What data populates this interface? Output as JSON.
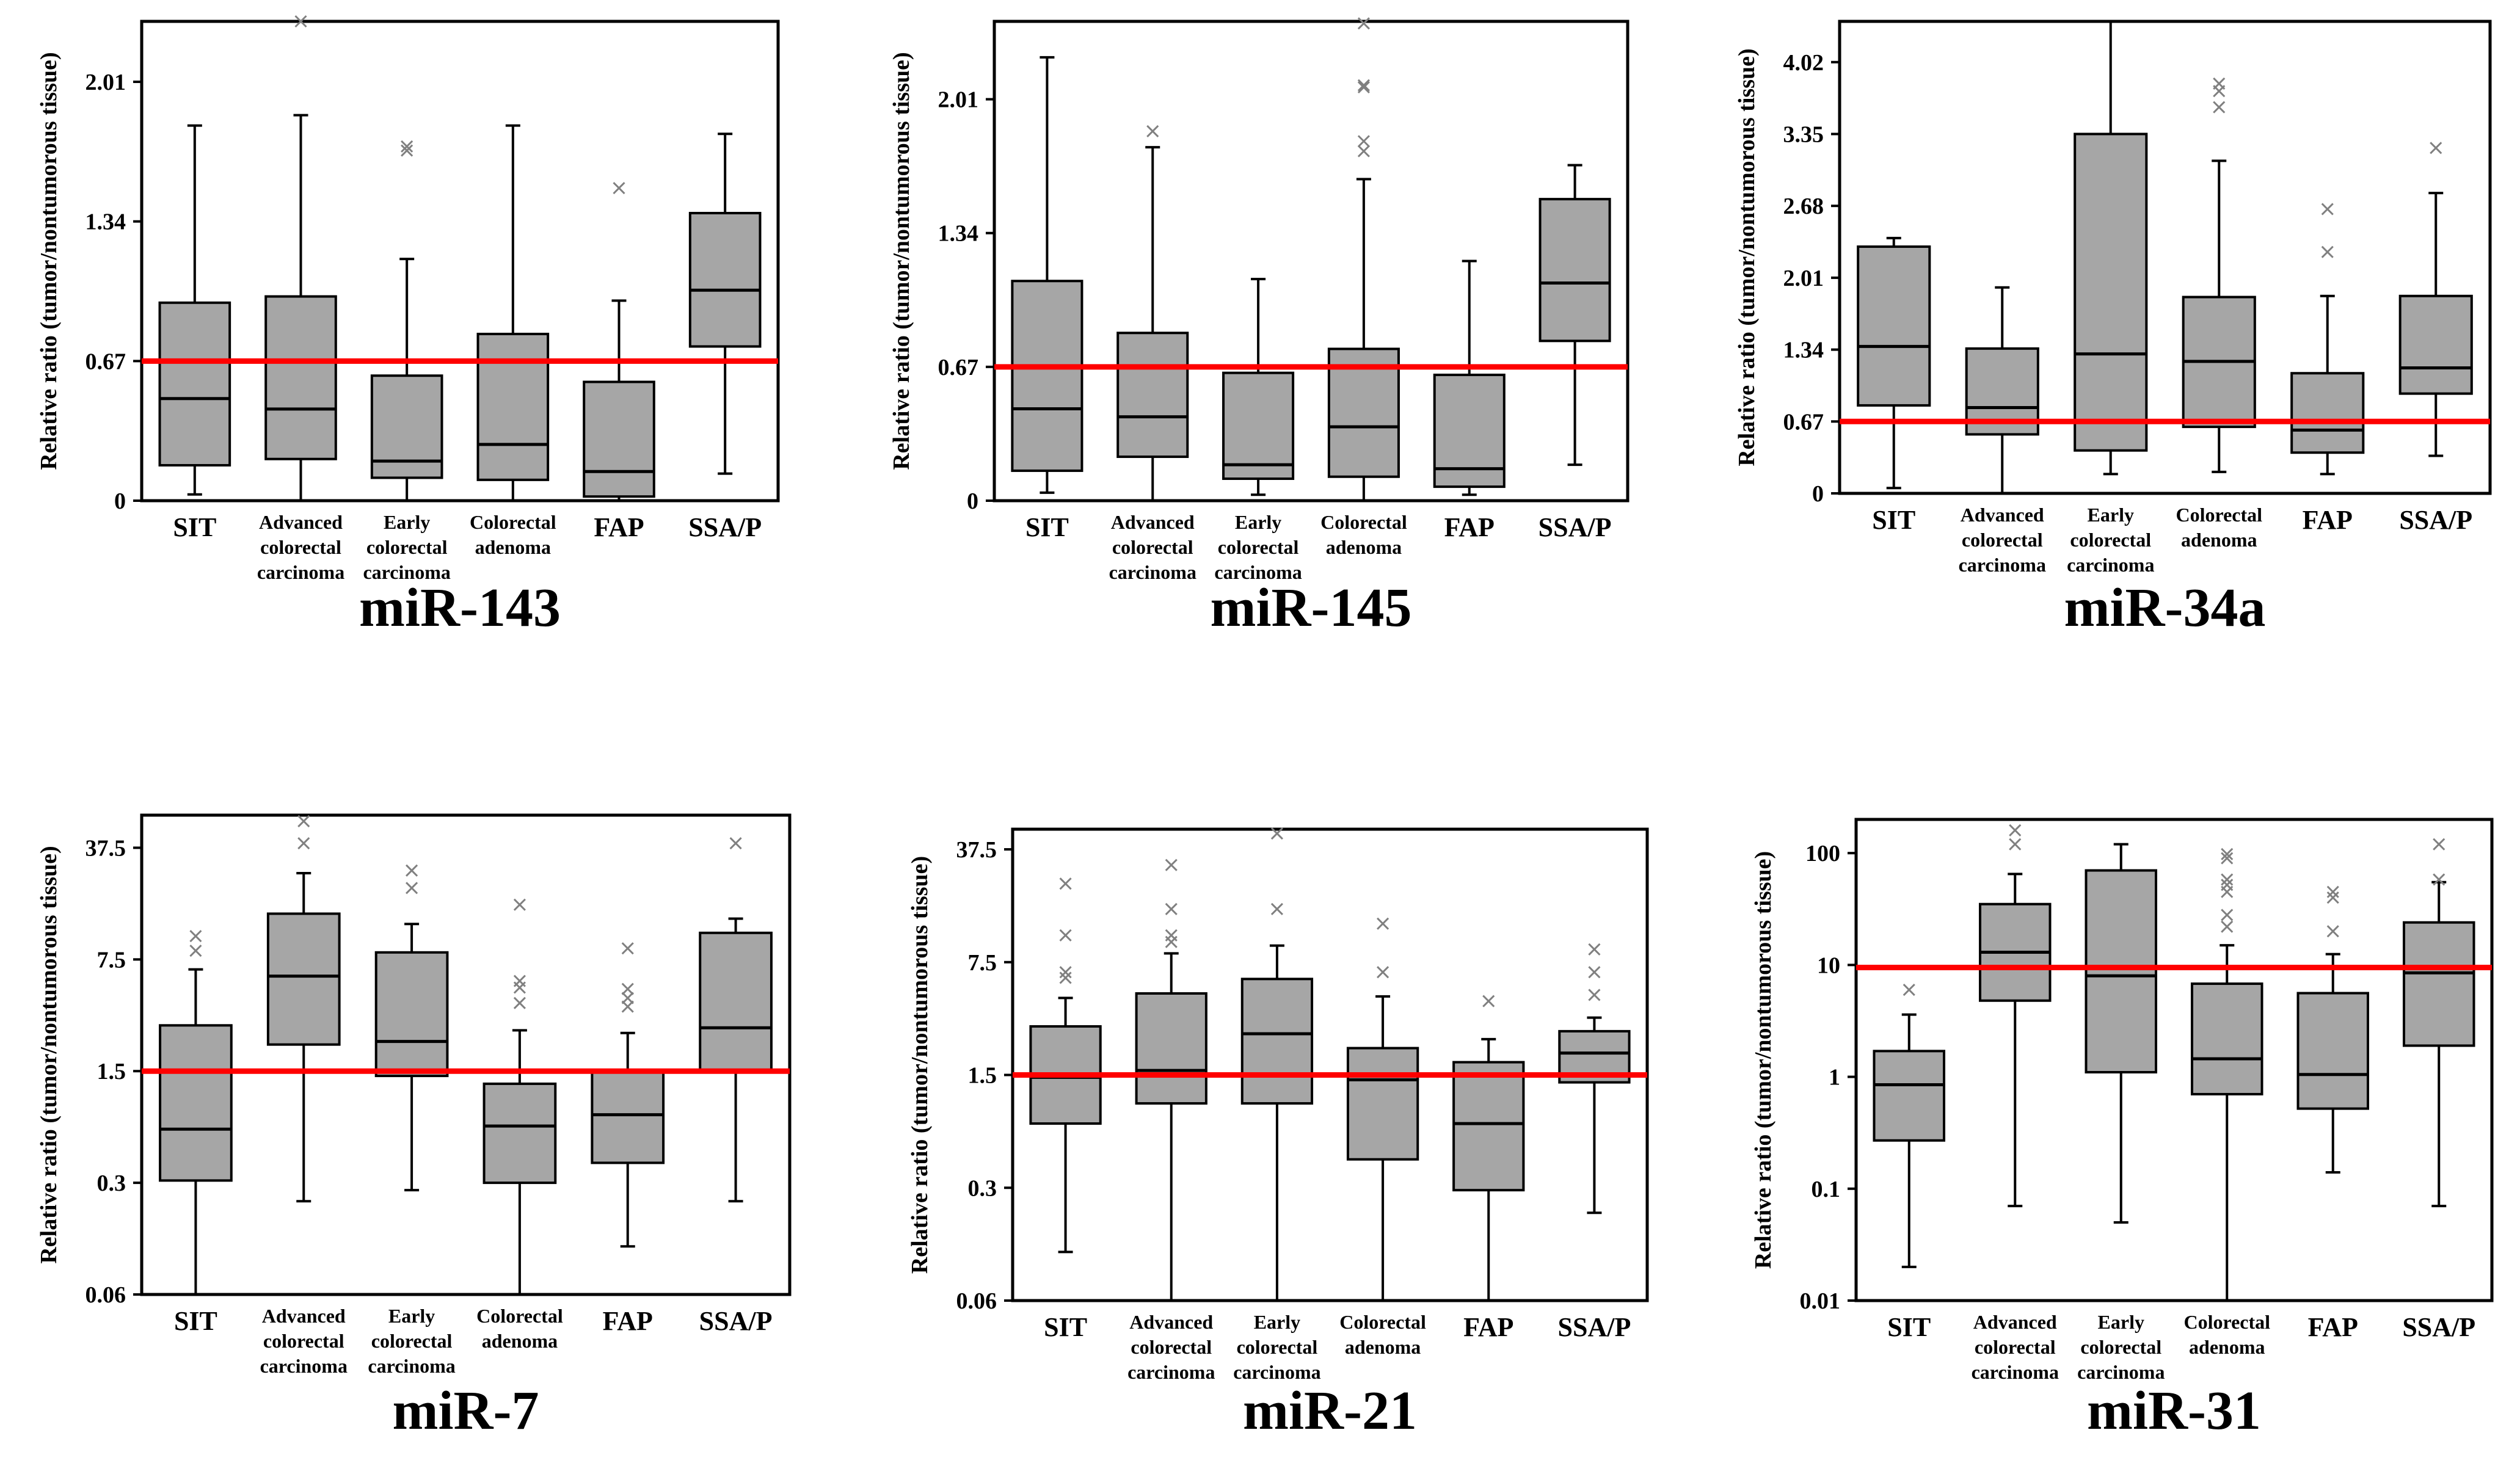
{
  "figure": {
    "ylabel": "Relative ratio (tumor/nontumorous tissue)",
    "categories": [
      [
        "SIT"
      ],
      [
        "Advanced",
        "colorectal",
        "carcinoma"
      ],
      [
        "Early",
        "colorectal",
        "carcinoma"
      ],
      [
        "Colorectal",
        "adenoma"
      ],
      [
        "FAP"
      ],
      [
        "SSA/P"
      ]
    ],
    "colors": {
      "box_fill": "#a6a6a6",
      "box_stroke": "#000000",
      "ref_line": "#ff0000",
      "outlier": "#808080"
    }
  },
  "chart_data": [
    {
      "type": "box",
      "title": "miR-143",
      "scale": "linear",
      "ylim": [
        0,
        2.3
      ],
      "yticks": [
        "0",
        "0.67",
        "1.34",
        "2.01"
      ],
      "reference_line": 0.67,
      "boxes": [
        {
          "whisker_low": 0.03,
          "q1": 0.17,
          "median": 0.49,
          "q3": 0.95,
          "whisker_high": 1.8,
          "outliers": []
        },
        {
          "whisker_low": 0.0,
          "q1": 0.2,
          "median": 0.44,
          "q3": 0.98,
          "whisker_high": 1.85,
          "outliers": [
            2.3
          ]
        },
        {
          "whisker_low": 0.0,
          "q1": 0.11,
          "median": 0.19,
          "q3": 0.6,
          "whisker_high": 1.16,
          "outliers": [
            1.7,
            1.68
          ]
        },
        {
          "whisker_low": 0.0,
          "q1": 0.1,
          "median": 0.27,
          "q3": 0.8,
          "whisker_high": 1.8,
          "outliers": []
        },
        {
          "whisker_low": 0.0,
          "q1": 0.02,
          "median": 0.14,
          "q3": 0.57,
          "whisker_high": 0.96,
          "outliers": [
            1.5
          ]
        },
        {
          "whisker_low": 0.13,
          "q1": 0.74,
          "median": 1.01,
          "q3": 1.38,
          "whisker_high": 1.76,
          "outliers": []
        }
      ]
    },
    {
      "type": "box",
      "title": "miR-145",
      "scale": "linear",
      "ylim": [
        0,
        2.4
      ],
      "yticks": [
        "0",
        "0.67",
        "1.34",
        "2.01"
      ],
      "reference_line": 0.67,
      "boxes": [
        {
          "whisker_low": 0.04,
          "q1": 0.15,
          "median": 0.46,
          "q3": 1.1,
          "whisker_high": 2.22,
          "outliers": []
        },
        {
          "whisker_low": 0.0,
          "q1": 0.22,
          "median": 0.42,
          "q3": 0.84,
          "whisker_high": 1.77,
          "outliers": [
            1.85
          ]
        },
        {
          "whisker_low": 0.03,
          "q1": 0.11,
          "median": 0.18,
          "q3": 0.64,
          "whisker_high": 1.11,
          "outliers": []
        },
        {
          "whisker_low": 0.0,
          "q1": 0.12,
          "median": 0.37,
          "q3": 0.76,
          "whisker_high": 1.61,
          "outliers": [
            2.39,
            2.08,
            2.07,
            1.8,
            1.75
          ]
        },
        {
          "whisker_low": 0.03,
          "q1": 0.07,
          "median": 0.16,
          "q3": 0.63,
          "whisker_high": 1.2,
          "outliers": []
        },
        {
          "whisker_low": 0.18,
          "q1": 0.8,
          "median": 1.09,
          "q3": 1.51,
          "whisker_high": 1.68,
          "outliers": []
        }
      ]
    },
    {
      "type": "box",
      "title": "miR-34a",
      "scale": "linear",
      "ylim": [
        0,
        4.4
      ],
      "yticks": [
        "0",
        "0.67",
        "1.34",
        "2.01",
        "2.68",
        "3.35",
        "4.02"
      ],
      "reference_line": 0.67,
      "boxes": [
        {
          "whisker_low": 0.05,
          "q1": 0.82,
          "median": 1.37,
          "q3": 2.3,
          "whisker_high": 2.38,
          "outliers": []
        },
        {
          "whisker_low": 0.0,
          "q1": 0.55,
          "median": 0.8,
          "q3": 1.35,
          "whisker_high": 1.92,
          "outliers": []
        },
        {
          "whisker_low": 0.18,
          "q1": 0.4,
          "median": 1.3,
          "q3": 3.35,
          "whisker_high": 4.4,
          "outliers": []
        },
        {
          "whisker_low": 0.2,
          "q1": 0.62,
          "median": 1.23,
          "q3": 1.83,
          "whisker_high": 3.1,
          "outliers": [
            3.82,
            3.75,
            3.6
          ]
        },
        {
          "whisker_low": 0.18,
          "q1": 0.38,
          "median": 0.59,
          "q3": 1.12,
          "whisker_high": 1.84,
          "outliers": [
            2.65,
            2.25
          ]
        },
        {
          "whisker_low": 0.35,
          "q1": 0.93,
          "median": 1.17,
          "q3": 1.84,
          "whisker_high": 2.8,
          "outliers": [
            3.22
          ]
        }
      ]
    },
    {
      "type": "box",
      "title": "miR-7",
      "scale": "log",
      "ylim": [
        0.06,
        60
      ],
      "yticks": [
        "0.06",
        "0.3",
        "1.5",
        "7.5",
        "37.5"
      ],
      "tick_values": [
        0.06,
        0.3,
        1.5,
        7.5,
        37.5
      ],
      "reference_line": 1.5,
      "boxes": [
        {
          "whisker_low": 0.06,
          "q1": 0.31,
          "median": 0.65,
          "q3": 2.9,
          "whisker_high": 6.5,
          "outliers": [
            10.5,
            8.5
          ]
        },
        {
          "whisker_low": 0.23,
          "q1": 2.2,
          "median": 5.9,
          "q3": 14.5,
          "whisker_high": 26.0,
          "outliers": [
            55.0,
            40.0
          ]
        },
        {
          "whisker_low": 0.27,
          "q1": 1.4,
          "median": 2.3,
          "q3": 8.3,
          "whisker_high": 12.5,
          "outliers": [
            27.0,
            21.0
          ]
        },
        {
          "whisker_low": 0.06,
          "q1": 0.3,
          "median": 0.68,
          "q3": 1.25,
          "whisker_high": 2.7,
          "outliers": [
            16.5,
            5.5,
            5.0,
            4.0
          ]
        },
        {
          "whisker_low": 0.12,
          "q1": 0.4,
          "median": 0.8,
          "q3": 1.5,
          "whisker_high": 2.6,
          "outliers": [
            8.8,
            4.9,
            4.3,
            3.8
          ]
        },
        {
          "whisker_low": 0.23,
          "q1": 1.5,
          "median": 2.8,
          "q3": 11.0,
          "whisker_high": 13.5,
          "outliers": [
            40.0
          ]
        }
      ]
    },
    {
      "type": "box",
      "title": "miR-21",
      "scale": "log",
      "ylim": [
        0.06,
        50
      ],
      "yticks": [
        "0.06",
        "0.3",
        "1.5",
        "7.5",
        "37.5"
      ],
      "tick_values": [
        0.06,
        0.3,
        1.5,
        7.5,
        37.5
      ],
      "reference_line": 1.5,
      "boxes": [
        {
          "whisker_low": 0.12,
          "q1": 0.75,
          "median": 1.45,
          "q3": 3.0,
          "whisker_high": 4.5,
          "outliers": [
            23.0,
            11.0,
            6.5,
            6.0
          ]
        },
        {
          "whisker_low": 0.06,
          "q1": 1.0,
          "median": 1.6,
          "q3": 4.8,
          "whisker_high": 8.5,
          "outliers": [
            30.0,
            16.0,
            11.0,
            10.0
          ]
        },
        {
          "whisker_low": 0.06,
          "q1": 1.0,
          "median": 2.7,
          "q3": 5.9,
          "whisker_high": 9.5,
          "outliers": [
            47.0,
            16.0
          ]
        },
        {
          "whisker_low": 0.06,
          "q1": 0.45,
          "median": 1.4,
          "q3": 2.2,
          "whisker_high": 4.6,
          "outliers": [
            13.0,
            6.5
          ]
        },
        {
          "whisker_low": 0.06,
          "q1": 0.29,
          "median": 0.75,
          "q3": 1.8,
          "whisker_high": 2.5,
          "outliers": [
            4.3
          ]
        },
        {
          "whisker_low": 0.21,
          "q1": 1.35,
          "median": 2.05,
          "q3": 2.8,
          "whisker_high": 3.4,
          "outliers": [
            9.0,
            6.5,
            4.7
          ]
        }
      ]
    },
    {
      "type": "box",
      "title": "miR-31",
      "scale": "log",
      "ylim": [
        0.01,
        200
      ],
      "yticks": [
        "0.01",
        "0.1",
        "1",
        "10",
        "100"
      ],
      "tick_values": [
        0.01,
        0.1,
        1,
        10,
        100
      ],
      "reference_line": 9.5,
      "boxes": [
        {
          "whisker_low": 0.02,
          "q1": 0.27,
          "median": 0.85,
          "q3": 1.7,
          "whisker_high": 3.6,
          "outliers": [
            6.0
          ]
        },
        {
          "whisker_low": 0.07,
          "q1": 4.8,
          "median": 13.0,
          "q3": 35.0,
          "whisker_high": 65.0,
          "outliers": [
            160.0,
            120.0
          ]
        },
        {
          "whisker_low": 0.05,
          "q1": 1.1,
          "median": 8.0,
          "q3": 70.0,
          "whisker_high": 120.0,
          "outliers": []
        },
        {
          "whisker_low": 0.01,
          "q1": 0.7,
          "median": 1.45,
          "q3": 6.8,
          "whisker_high": 15.0,
          "outliers": [
            98.0,
            90.0,
            58.0,
            52.0,
            45.0,
            28.0,
            22.0
          ]
        },
        {
          "whisker_low": 0.14,
          "q1": 0.52,
          "median": 1.05,
          "q3": 5.6,
          "whisker_high": 12.5,
          "outliers": [
            45.0,
            40.0,
            20.0
          ]
        },
        {
          "whisker_low": 0.07,
          "q1": 1.9,
          "median": 8.5,
          "q3": 24.0,
          "whisker_high": 55.0,
          "outliers": [
            120.0,
            58.0
          ]
        }
      ]
    }
  ]
}
